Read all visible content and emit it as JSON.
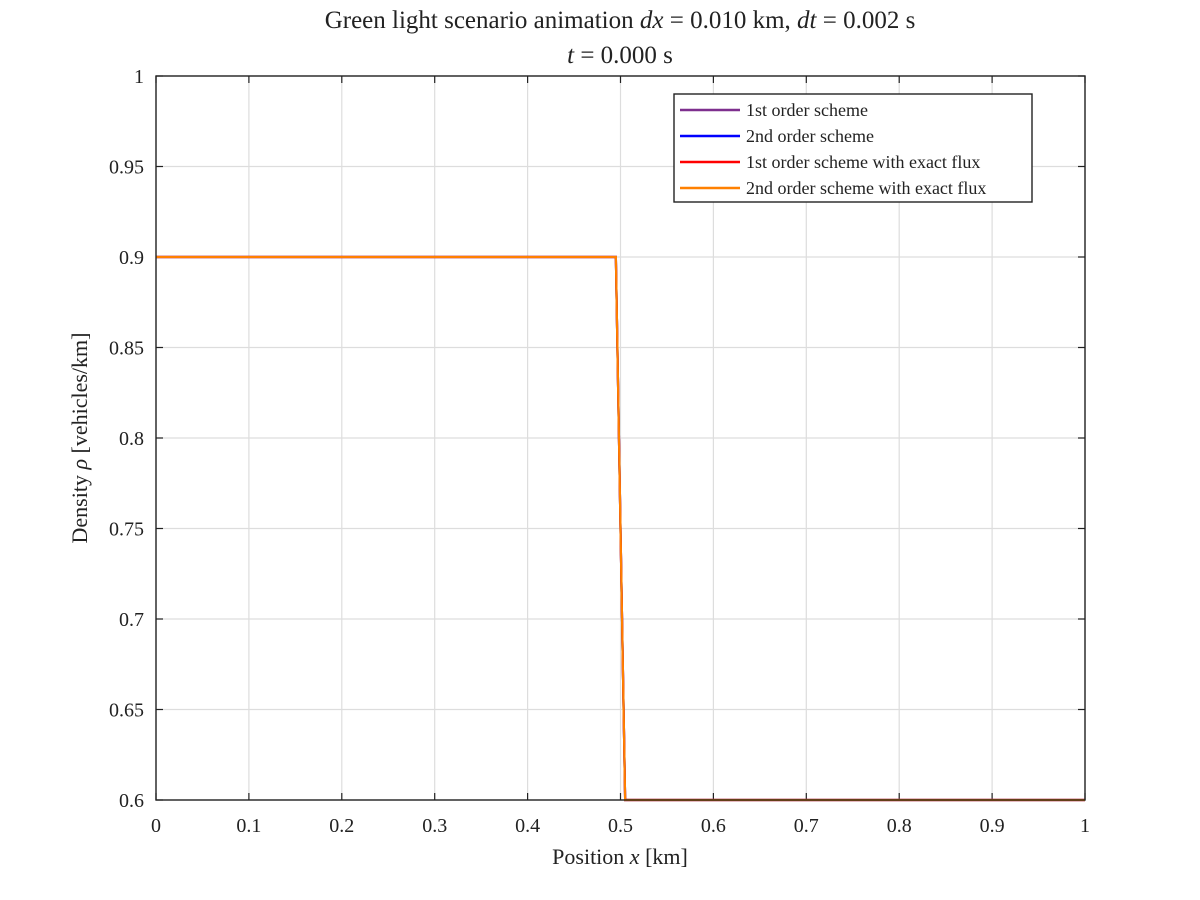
{
  "chart_data": {
    "type": "line",
    "title_prefix": "Green light scenario animation ",
    "title_dx_var": "dx",
    "title_dx_value": " = 0.010 km, ",
    "title_dt_var": "dt",
    "title_dt_value": " = 0.002 s",
    "subtitle_var": "t",
    "subtitle_value": " = 0.000 s",
    "xlabel_prefix": "Position ",
    "xlabel_var": "x",
    "xlabel_suffix": " [km]",
    "ylabel_prefix": "Density ",
    "ylabel_var": "ρ",
    "ylabel_suffix": " [vehicles/km]",
    "xlim": [
      0,
      1
    ],
    "ylim": [
      0.6,
      1
    ],
    "xticks": [
      "0",
      "0.1",
      "0.2",
      "0.3",
      "0.4",
      "0.5",
      "0.6",
      "0.7",
      "0.8",
      "0.9",
      "1"
    ],
    "yticks": [
      "0.6",
      "0.65",
      "0.7",
      "0.75",
      "0.8",
      "0.85",
      "0.9",
      "0.95",
      "1"
    ],
    "grid": true,
    "legend_position": "top-right",
    "series": [
      {
        "name": "1st order scheme",
        "color": "#7e2f8e",
        "x": [
          0,
          0.495,
          0.505,
          1
        ],
        "y": [
          0.9,
          0.9,
          0.6,
          0.6
        ]
      },
      {
        "name": "2nd order scheme",
        "color": "#0000ff",
        "x": [
          0,
          0.495,
          0.505,
          1
        ],
        "y": [
          0.9,
          0.9,
          0.6,
          0.6
        ]
      },
      {
        "name": "1st order scheme with exact flux",
        "color": "#ff0000",
        "x": [
          0,
          0.495,
          0.505,
          1
        ],
        "y": [
          0.9,
          0.9,
          0.6,
          0.6
        ]
      },
      {
        "name": "2nd order scheme with exact flux",
        "color": "#ff8000",
        "x": [
          0,
          0.495,
          0.505,
          1
        ],
        "y": [
          0.9,
          0.9,
          0.6,
          0.6
        ]
      }
    ]
  }
}
